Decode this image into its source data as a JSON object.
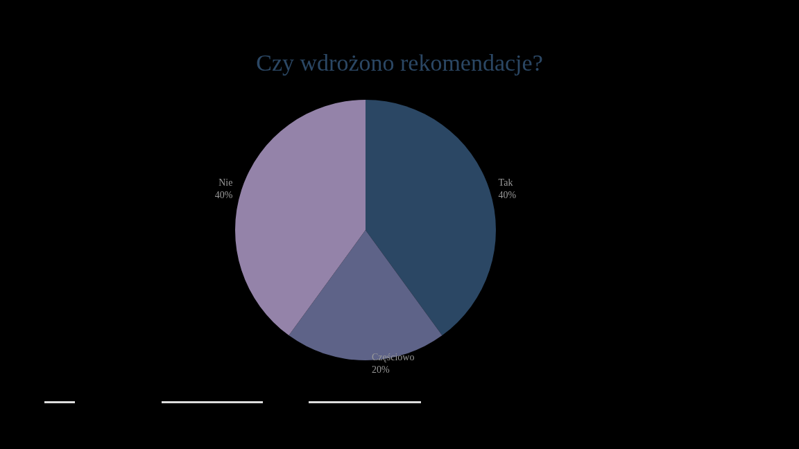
{
  "chart_data": {
    "type": "pie",
    "title": "Czy wdrożono rekomendacje?",
    "categories": [
      "Tak",
      "Częściowo",
      "Nie"
    ],
    "values": [
      40,
      20,
      40
    ],
    "value_labels": [
      "40%",
      "20%",
      "40%"
    ],
    "colors": [
      "#2b4764",
      "#5e6388",
      "#9483a9"
    ],
    "legend": false
  }
}
